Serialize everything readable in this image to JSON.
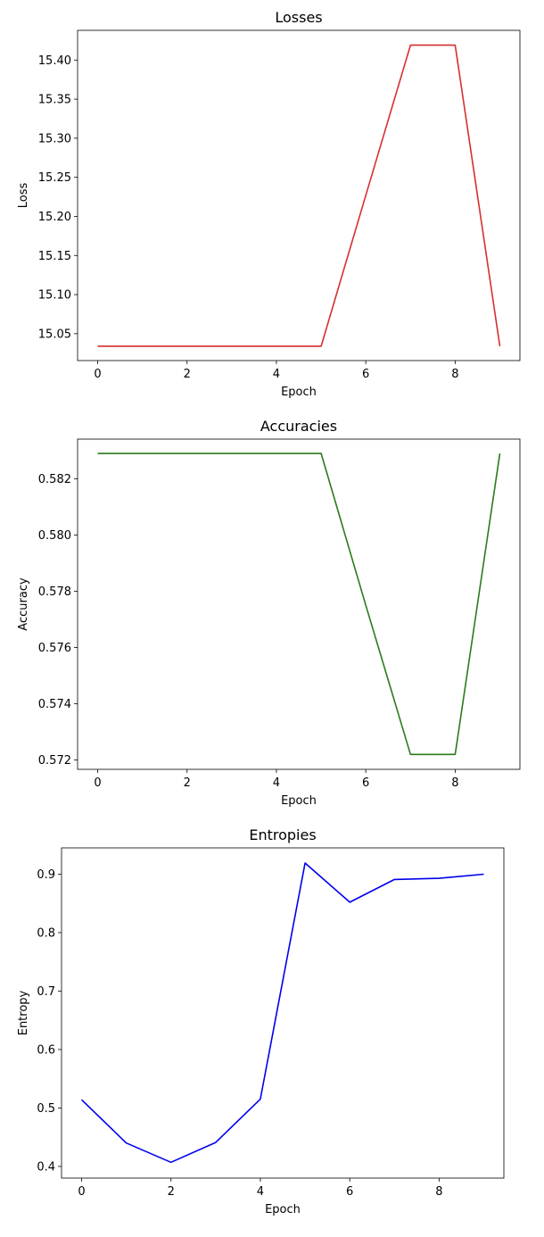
{
  "chart_data": [
    {
      "type": "line",
      "title": "Losses",
      "xlabel": "Epoch",
      "ylabel": "Loss",
      "xlim": [
        -0.45,
        9.45
      ],
      "ylim": [
        15.0156,
        15.438
      ],
      "xticks": [
        0,
        2,
        4,
        6,
        8
      ],
      "xtick_labels": [
        "0",
        "2",
        "4",
        "6",
        "8"
      ],
      "yticks": [
        15.05,
        15.1,
        15.15,
        15.2,
        15.25,
        15.3,
        15.35,
        15.4
      ],
      "ytick_labels": [
        "15.05",
        "15.10",
        "15.15",
        "15.20",
        "15.25",
        "15.30",
        "15.35",
        "15.40"
      ],
      "grid": false,
      "color": "#d62f2f",
      "series": [
        {
          "x": [
            0,
            1,
            2,
            3,
            4,
            5,
            6,
            7,
            8,
            9
          ],
          "values": [
            15.034,
            15.034,
            15.034,
            15.034,
            15.034,
            15.034,
            15.227,
            15.419,
            15.419,
            15.034
          ]
        }
      ]
    },
    {
      "type": "line",
      "title": "Accuracies",
      "xlabel": "Epoch",
      "ylabel": "Accuracy",
      "xlim": [
        -0.45,
        9.45
      ],
      "ylim": [
        0.57167,
        0.58341
      ],
      "xticks": [
        0,
        2,
        4,
        6,
        8
      ],
      "xtick_labels": [
        "0",
        "2",
        "4",
        "6",
        "8"
      ],
      "yticks": [
        0.572,
        0.574,
        0.576,
        0.578,
        0.58,
        0.582
      ],
      "ytick_labels": [
        "0.572",
        "0.574",
        "0.576",
        "0.578",
        "0.580",
        "0.582"
      ],
      "grid": false,
      "color": "#2b7a1b",
      "series": [
        {
          "x": [
            0,
            1,
            2,
            3,
            4,
            5,
            6,
            7,
            8,
            9
          ],
          "values": [
            0.5829,
            0.5829,
            0.5829,
            0.5829,
            0.5829,
            0.5829,
            0.5775,
            0.5722,
            0.5722,
            0.5829
          ]
        }
      ]
    },
    {
      "type": "line",
      "title": "Entropies",
      "xlabel": "Epoch",
      "ylabel": "Entropy",
      "xlim": [
        -0.45,
        9.45
      ],
      "ylim": [
        0.38,
        0.945
      ],
      "xticks": [
        0,
        2,
        4,
        6,
        8
      ],
      "xtick_labels": [
        "0",
        "2",
        "4",
        "6",
        "8"
      ],
      "yticks": [
        0.4,
        0.5,
        0.6,
        0.7,
        0.8,
        0.9
      ],
      "ytick_labels": [
        "0.4",
        "0.5",
        "0.6",
        "0.7",
        "0.8",
        "0.9"
      ],
      "grid": false,
      "color": "#0000ee",
      "series": [
        {
          "x": [
            0,
            1,
            2,
            3,
            4,
            5,
            6,
            7,
            8,
            9
          ],
          "values": [
            0.514,
            0.44,
            0.407,
            0.441,
            0.515,
            0.919,
            0.852,
            0.891,
            0.893,
            0.9
          ]
        }
      ]
    }
  ]
}
